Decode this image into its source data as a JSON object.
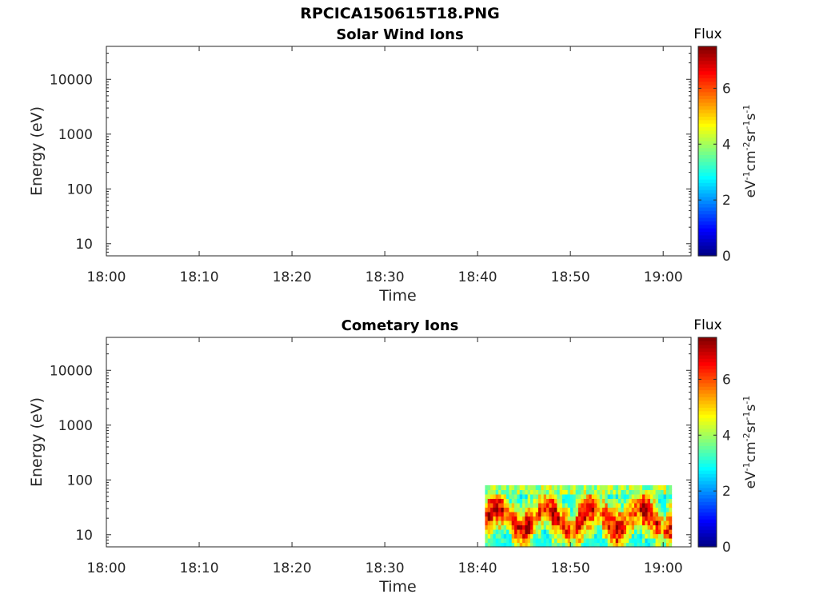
{
  "figure_title": "RPCICA150615T18.PNG",
  "chart_data": [
    {
      "type": "heatmap",
      "title": "Solar Wind Ions",
      "xlabel": "Time",
      "ylabel": "Energy (eV)",
      "y_scale": "log",
      "ylim": [
        6,
        40000
      ],
      "xlim": [
        "18:00",
        "19:03"
      ],
      "x_ticks": [
        "18:00",
        "18:10",
        "18:20",
        "18:30",
        "18:40",
        "18:50",
        "19:00"
      ],
      "y_ticks": [
        "10",
        "100",
        "1000",
        "10000"
      ],
      "colorbar": {
        "title": "Flux",
        "unit": "eV-1cm-2sr-1s-1",
        "range": [
          0,
          7.5
        ],
        "ticks": [
          "0",
          "2",
          "4",
          "6"
        ]
      },
      "data": []
    },
    {
      "type": "heatmap",
      "title": "Cometary Ions",
      "xlabel": "Time",
      "ylabel": "Energy (eV)",
      "y_scale": "log",
      "ylim": [
        6,
        40000
      ],
      "xlim": [
        "18:00",
        "19:03"
      ],
      "x_ticks": [
        "18:00",
        "18:10",
        "18:20",
        "18:30",
        "18:40",
        "18:50",
        "19:00"
      ],
      "y_ticks": [
        "10",
        "100",
        "1000",
        "10000"
      ],
      "colorbar": {
        "title": "Flux",
        "unit": "eV-1cm-2sr-1s-1",
        "range": [
          0,
          7.5
        ],
        "ticks": [
          "0",
          "2",
          "4",
          "6"
        ]
      },
      "data": {
        "time_range": [
          "18:40",
          "19:01"
        ],
        "energy_range": [
          6,
          80
        ],
        "flux_range": [
          2.5,
          7
        ]
      }
    }
  ]
}
